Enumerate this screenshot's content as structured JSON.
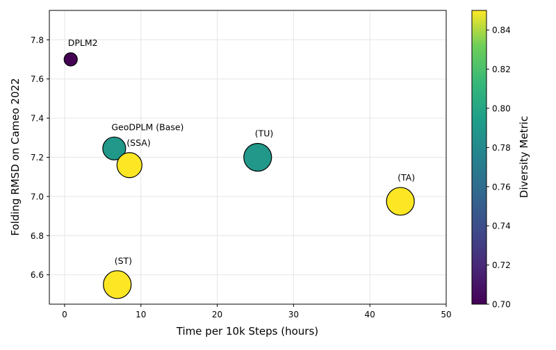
{
  "chart_data": {
    "type": "scatter",
    "xlabel": "Time per 10k Steps (hours)",
    "ylabel": "Folding RMSD on Cameo 2022",
    "xlim": [
      -2,
      50
    ],
    "ylim": [
      6.45,
      7.95
    ],
    "xticks": [
      0,
      10,
      20,
      30,
      40,
      50
    ],
    "yticks": [
      6.6,
      6.8,
      7.0,
      7.2,
      7.4,
      7.6,
      7.8
    ],
    "grid": true,
    "colorbar": {
      "label": "Diversity Metric",
      "range": [
        0.7,
        0.85
      ],
      "ticks": [
        0.7,
        0.72,
        0.74,
        0.76,
        0.78,
        0.8,
        0.82,
        0.84
      ]
    },
    "points": [
      {
        "label": "DPLM2",
        "x": 0.8,
        "y": 7.7,
        "diversity": 0.7,
        "size": "small"
      },
      {
        "label": "GeoDPLM (Base)",
        "x": 6.5,
        "y": 7.245,
        "diversity": 0.79,
        "size": "medium"
      },
      {
        "label": "(SSA)",
        "x": 8.5,
        "y": 7.16,
        "diversity": 0.85,
        "size": "large"
      },
      {
        "label": "(TU)",
        "x": 25.3,
        "y": 7.2,
        "diversity": 0.79,
        "size": "xlarge"
      },
      {
        "label": "(TA)",
        "x": 44.0,
        "y": 6.975,
        "diversity": 0.85,
        "size": "xlarge"
      },
      {
        "label": "(ST)",
        "x": 6.9,
        "y": 6.55,
        "diversity": 0.85,
        "size": "xlarge"
      }
    ]
  }
}
